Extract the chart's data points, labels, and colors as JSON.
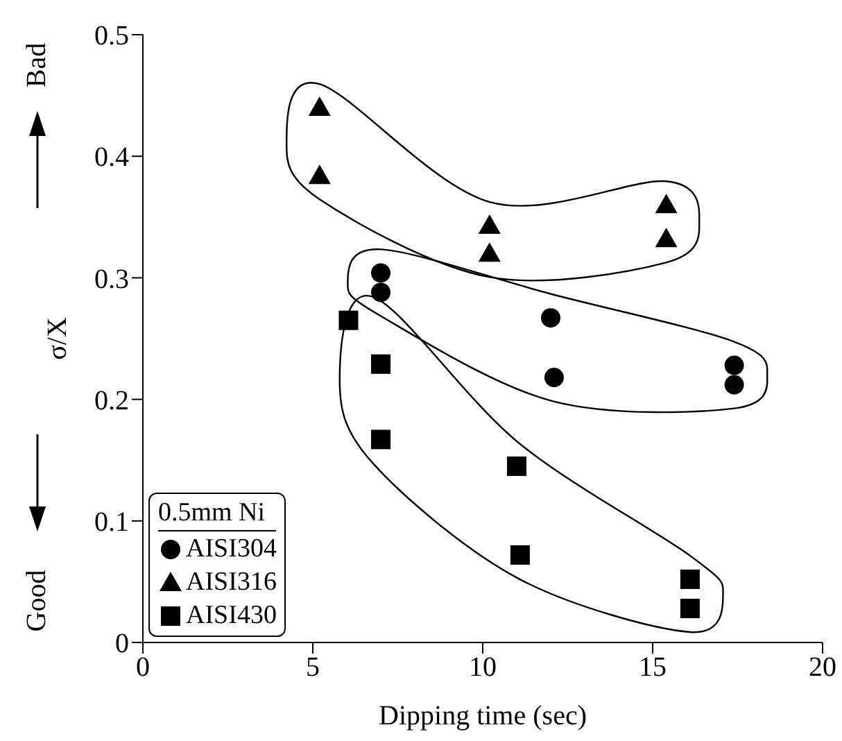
{
  "chart_data": {
    "type": "scatter",
    "xlabel": "Dipping time (sec)",
    "ylabel": "σ/X",
    "legend_title": "0.5mm Ni",
    "annotations": [
      "Good",
      "Bad"
    ],
    "xlim": [
      0,
      20
    ],
    "xticks": [
      0,
      5,
      10,
      15,
      20
    ],
    "ylim": [
      0,
      0.5
    ],
    "yticks": [
      0,
      0.1,
      0.2,
      0.3,
      0.4,
      0.5
    ],
    "legend": "bottom left",
    "grid": false,
    "series": [
      {
        "name": "AISI304",
        "color": "#000000",
        "marker": "circle",
        "x": [
          7.0,
          7.0,
          12.0,
          12.1,
          17.4,
          17.4
        ],
        "values": [
          0.304,
          0.288,
          0.267,
          0.218,
          0.228,
          0.212
        ]
      },
      {
        "name": "AISI316",
        "color": "#000000",
        "marker": "triangle",
        "x": [
          5.2,
          5.2,
          10.2,
          10.2,
          15.4,
          15.4
        ],
        "values": [
          0.44,
          0.384,
          0.343,
          0.32,
          0.36,
          0.332
        ]
      },
      {
        "name": "AISI430",
        "color": "#000000",
        "marker": "square",
        "x": [
          6.05,
          7.0,
          7.0,
          11.0,
          11.1,
          16.1,
          16.1
        ],
        "values": [
          0.265,
          0.229,
          0.167,
          0.145,
          0.072,
          0.052,
          0.028
        ]
      }
    ]
  }
}
